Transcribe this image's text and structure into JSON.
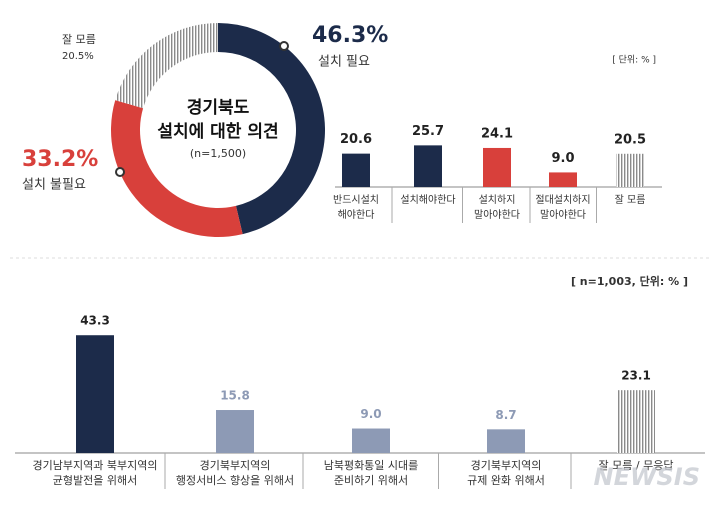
{
  "chart_data": [
    {
      "type": "pie",
      "title": [
        "경기북도",
        "설치에 대한 의견"
      ],
      "subtitle": "(n=1,500)",
      "categories": [
        "설치 필요",
        "설치 불필요",
        "잘 모름"
      ],
      "values": [
        46.3,
        33.2,
        20.5
      ],
      "value_labels": [
        "46.3%",
        "33.2%",
        "20.5%"
      ],
      "colors": [
        "#1c2b4a",
        "#d8403b",
        "stripes"
      ]
    },
    {
      "type": "bar",
      "note": "[ 단위: % ]",
      "categories": [
        [
          "반드시설치",
          "해야한다"
        ],
        [
          "설치해야한다"
        ],
        [
          "설치하지",
          "말아야한다"
        ],
        [
          "절대설치하지",
          "말아야한다"
        ],
        [
          "잘 모름"
        ]
      ],
      "values": [
        20.6,
        25.7,
        24.1,
        9.0,
        20.5
      ],
      "value_labels": [
        "20.6",
        "25.7",
        "24.1",
        "9.0",
        "20.5"
      ],
      "colors": [
        "#1c2b4a",
        "#1c2b4a",
        "#d8403b",
        "#d8403b",
        "stripes"
      ]
    },
    {
      "type": "bar",
      "note": "[ n=1,003, 단위: % ]",
      "categories": [
        [
          "경기남부지역과 북부지역의",
          "균형발전을 위해서"
        ],
        [
          "경기북부지역의",
          "행정서비스 향상을 위해서"
        ],
        [
          "남북평화통일 시대를",
          "준비하기 위해서"
        ],
        [
          "경기북부지역의",
          "규제 완화 위해서"
        ],
        [
          "잘 모름 / 무응답"
        ]
      ],
      "values": [
        43.3,
        15.8,
        9.0,
        8.7,
        23.1
      ],
      "value_labels": [
        "43.3",
        "15.8",
        "9.0",
        "8.7",
        "23.1"
      ],
      "colors": [
        "#1c2b4a",
        "#8d9ab5",
        "#8d9ab5",
        "#8d9ab5",
        "stripes"
      ],
      "watermark": "NEWSIS"
    }
  ]
}
